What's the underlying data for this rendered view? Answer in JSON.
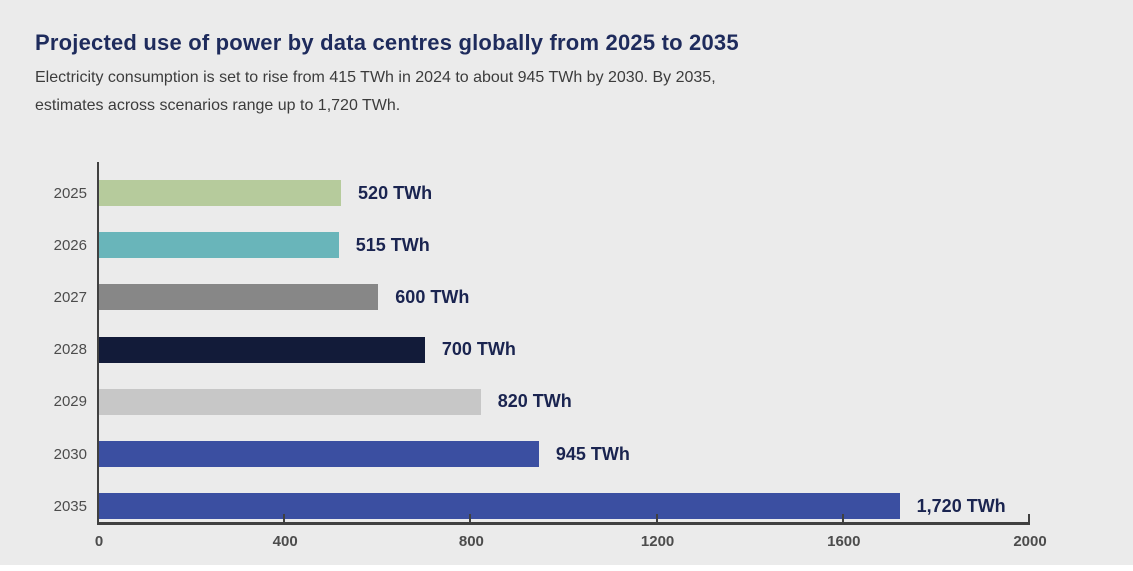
{
  "header": {
    "title": "Projected use of power by data centres globally from 2025 to 2035",
    "subtitle_line1": "Electricity consumption is set to rise from 415 TWh in 2024 to about 945 TWh by 2030. By 2035,",
    "subtitle_line2": "estimates across scenarios range up to 1,720 TWh."
  },
  "chart_data": {
    "type": "bar",
    "orientation": "horizontal",
    "title": "Projected use of power by data centres globally from 2025 to 2035",
    "categories": [
      "2025",
      "2026",
      "2027",
      "2028",
      "2029",
      "2030",
      "2035"
    ],
    "values": [
      520,
      515,
      600,
      700,
      820,
      945,
      1720
    ],
    "value_labels": [
      "520 TWh",
      "515 TWh",
      "600 TWh",
      "700 TWh",
      "820 TWh",
      "945 TWh",
      "1,720 TWh"
    ],
    "bar_colors": [
      "#b6cb9c",
      "#69b5ba",
      "#878787",
      "#121b39",
      "#c7c7c7",
      "#3b4fa1",
      "#3b4fa1"
    ],
    "unit": "TWh",
    "xlabel": "",
    "ylabel": "",
    "xlim": [
      0,
      2000
    ],
    "x_ticks": [
      0,
      400,
      800,
      1200,
      1600,
      2000
    ],
    "grid": false,
    "legend": false
  },
  "colors": {
    "background": "#ebebeb",
    "title_text": "#1e2b5c",
    "subtitle_text": "#3c3c3c",
    "axis": "#404040",
    "year_label": "#4c4c4c",
    "tick_label": "#4c4c4c",
    "value_label": "#1a2450"
  }
}
